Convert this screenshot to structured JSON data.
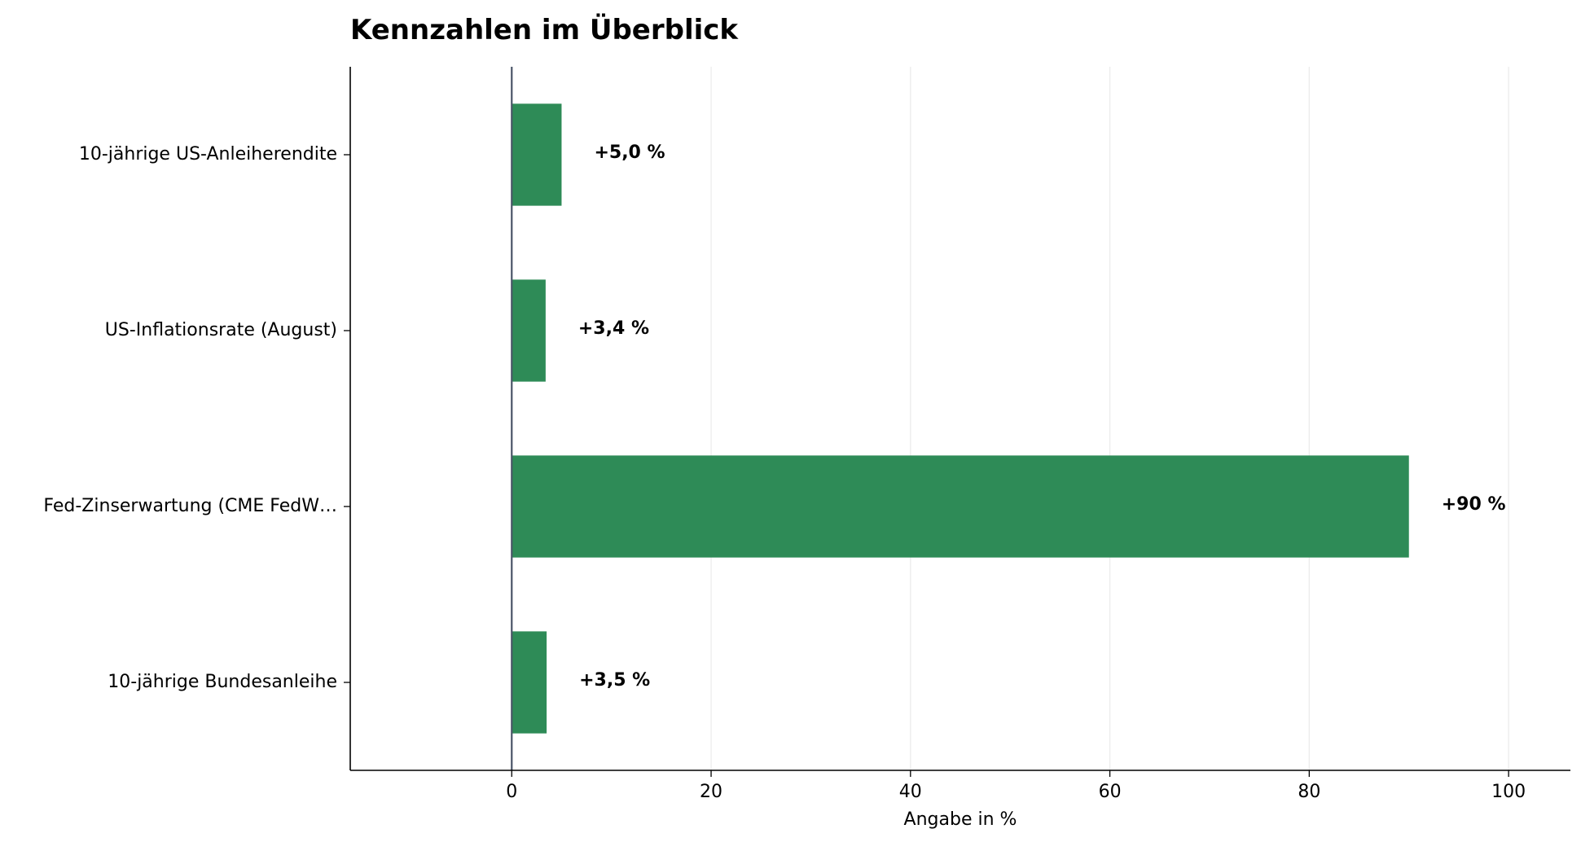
{
  "chart_data": {
    "type": "bar",
    "orientation": "horizontal",
    "title": "Kennzahlen im Überblick",
    "xlabel": "Angabe in %",
    "ylabel": "",
    "categories": [
      "10-jährige US-Anleiherendite",
      "US-Inflationsrate (August)",
      "Fed-Zinserwartung (CME FedW…",
      "10-jährige Bundesanleihe"
    ],
    "values": [
      5.0,
      3.4,
      90,
      3.5
    ],
    "data_labels": [
      "+5,0 %",
      "+3,4 %",
      "+90 %",
      "+3,5 %"
    ],
    "xlim": [
      -16.2,
      106.2
    ],
    "xticks": [
      0,
      20,
      40,
      60,
      80,
      100
    ],
    "xtick_labels": [
      "0",
      "20",
      "40",
      "60",
      "80",
      "100"
    ],
    "grid": "vertical",
    "colors": {
      "bar": "#2e8b57",
      "zero_line": "#4a5568",
      "grid": "#ececec",
      "axis": "#000000"
    }
  }
}
